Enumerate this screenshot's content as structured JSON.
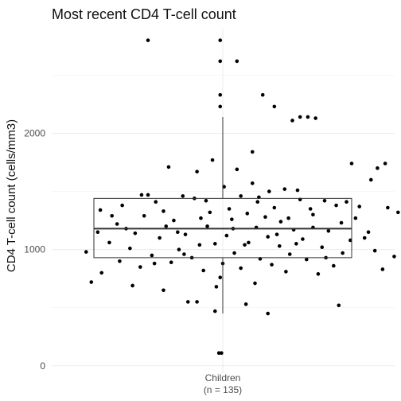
{
  "chart_data": {
    "type": "boxplot",
    "title": "Most recent CD4 T-cell count",
    "xlabel": "",
    "ylabel": "CD4 T-cell count (cells/mm3)",
    "category": "Children",
    "category_note": "(n = 135)",
    "y_ticks": [
      0,
      1000,
      2000
    ],
    "y_range": [
      -70,
      2900
    ],
    "grid": true,
    "legend": "none",
    "box": {
      "min": 450,
      "q1": 930,
      "median": 1180,
      "q3": 1440,
      "max": 2140
    },
    "points": [
      {
        "x": -0.58,
        "y": 2800
      },
      {
        "x": -0.02,
        "y": 2800
      },
      {
        "x": -0.02,
        "y": 2620
      },
      {
        "x": 0.11,
        "y": 2620
      },
      {
        "x": -0.02,
        "y": 2330
      },
      {
        "x": 0.31,
        "y": 2330
      },
      {
        "x": -0.02,
        "y": 2230
      },
      {
        "x": 0.4,
        "y": 2230
      },
      {
        "x": 0.6,
        "y": 2140
      },
      {
        "x": 0.66,
        "y": 2140
      },
      {
        "x": 0.72,
        "y": 2130
      },
      {
        "x": 0.54,
        "y": 2110
      },
      {
        "x": 0.23,
        "y": 1840
      },
      {
        "x": -0.08,
        "y": 1770
      },
      {
        "x": 1.0,
        "y": 1740
      },
      {
        "x": 1.26,
        "y": 1740
      },
      {
        "x": 1.2,
        "y": 1700
      },
      {
        "x": -0.42,
        "y": 1710
      },
      {
        "x": 0.11,
        "y": 1690
      },
      {
        "x": -0.2,
        "y": 1670
      },
      {
        "x": 1.15,
        "y": 1600
      },
      {
        "x": 0.01,
        "y": 1540
      },
      {
        "x": 0.23,
        "y": 1570
      },
      {
        "x": 0.48,
        "y": 1520
      },
      {
        "x": 0.58,
        "y": 1510
      },
      {
        "x": 0.36,
        "y": 1500
      },
      {
        "x": -0.63,
        "y": 1470
      },
      {
        "x": -0.31,
        "y": 1460
      },
      {
        "x": 0.14,
        "y": 1460
      },
      {
        "x": 0.28,
        "y": 1450
      },
      {
        "x": -0.22,
        "y": 1440
      },
      {
        "x": 0.6,
        "y": 1430
      },
      {
        "x": -0.52,
        "y": 1410
      },
      {
        "x": 0.79,
        "y": 1420
      },
      {
        "x": 0.96,
        "y": 1410
      },
      {
        "x": -0.78,
        "y": 1380
      },
      {
        "x": 0.88,
        "y": 1380
      },
      {
        "x": 1.06,
        "y": 1370
      },
      {
        "x": 1.28,
        "y": 1360
      },
      {
        "x": 0.4,
        "y": 1360
      },
      {
        "x": -0.95,
        "y": 1340
      },
      {
        "x": -0.46,
        "y": 1330
      },
      {
        "x": 0.19,
        "y": 1310
      },
      {
        "x": 0.7,
        "y": 1300
      },
      {
        "x": -0.61,
        "y": 1290
      },
      {
        "x": -0.17,
        "y": 1270
      },
      {
        "x": 0.07,
        "y": 1260
      },
      {
        "x": -0.38,
        "y": 1250
      },
      {
        "x": 0.45,
        "y": 1240
      },
      {
        "x": 0.92,
        "y": 1230
      },
      {
        "x": -0.82,
        "y": 1220
      },
      {
        "x": -0.12,
        "y": 1200
      },
      {
        "x": 0.26,
        "y": 1190
      },
      {
        "x": 0.55,
        "y": 1170
      },
      {
        "x": 0.82,
        "y": 1160
      },
      {
        "x": 1.13,
        "y": 1150
      },
      {
        "x": -0.68,
        "y": 1140
      },
      {
        "x": -0.29,
        "y": 1130
      },
      {
        "x": 0.03,
        "y": 1120
      },
      {
        "x": 0.35,
        "y": 1110
      },
      {
        "x": -0.49,
        "y": 1100
      },
      {
        "x": 0.62,
        "y": 1090
      },
      {
        "x": 0.99,
        "y": 1080
      },
      {
        "x": -0.88,
        "y": 1060
      },
      {
        "x": -0.06,
        "y": 1050
      },
      {
        "x": 0.17,
        "y": 1040
      },
      {
        "x": 0.44,
        "y": 1030
      },
      {
        "x": 0.77,
        "y": 1020
      },
      {
        "x": -0.72,
        "y": 1010
      },
      {
        "x": -0.34,
        "y": 1000
      },
      {
        "x": 1.18,
        "y": 990
      },
      {
        "x": -1.06,
        "y": 980
      },
      {
        "x": 0.09,
        "y": 970
      },
      {
        "x": 0.52,
        "y": 960
      },
      {
        "x": -0.55,
        "y": 950
      },
      {
        "x": 1.33,
        "y": 940
      },
      {
        "x": -0.24,
        "y": 930
      },
      {
        "x": 0.29,
        "y": 920
      },
      {
        "x": 0.65,
        "y": 915
      },
      {
        "x": 1.42,
        "y": 910
      },
      {
        "x": -0.8,
        "y": 900
      },
      {
        "x": -0.4,
        "y": 890
      },
      {
        "x": 0.0,
        "y": 880
      },
      {
        "x": 0.38,
        "y": 870
      },
      {
        "x": 0.86,
        "y": 860
      },
      {
        "x": -0.64,
        "y": 850
      },
      {
        "x": 0.14,
        "y": 840
      },
      {
        "x": 1.24,
        "y": 830
      },
      {
        "x": -0.15,
        "y": 820
      },
      {
        "x": 0.49,
        "y": 810
      },
      {
        "x": -0.94,
        "y": 800
      },
      {
        "x": 0.74,
        "y": 790
      },
      {
        "x": 1.46,
        "y": 770
      },
      {
        "x": -0.02,
        "y": 760
      },
      {
        "x": -1.02,
        "y": 720
      },
      {
        "x": 0.25,
        "y": 710
      },
      {
        "x": -0.7,
        "y": 690
      },
      {
        "x": -0.05,
        "y": 680
      },
      {
        "x": -0.46,
        "y": 650
      },
      {
        "x": -0.2,
        "y": 550
      },
      {
        "x": -0.27,
        "y": 550
      },
      {
        "x": 0.18,
        "y": 530
      },
      {
        "x": 0.9,
        "y": 520
      },
      {
        "x": -0.06,
        "y": 470
      },
      {
        "x": 0.35,
        "y": 450
      },
      {
        "x": -0.03,
        "y": 110
      },
      {
        "x": -0.01,
        "y": 110
      },
      {
        "x": -0.58,
        "y": 1470
      },
      {
        "x": -0.44,
        "y": 1200
      },
      {
        "x": -0.1,
        "y": 1320
      },
      {
        "x": 0.33,
        "y": 1280
      },
      {
        "x": 0.7,
        "y": 1190
      },
      {
        "x": 1.03,
        "y": 1270
      },
      {
        "x": -0.75,
        "y": 1180
      },
      {
        "x": 0.2,
        "y": 1060
      },
      {
        "x": 0.57,
        "y": 1050
      },
      {
        "x": -0.35,
        "y": 1150
      },
      {
        "x": 0.08,
        "y": 1180
      },
      {
        "x": 0.93,
        "y": 970
      },
      {
        "x": -0.86,
        "y": 1290
      },
      {
        "x": 0.42,
        "y": 1130
      },
      {
        "x": -0.18,
        "y": 1040
      },
      {
        "x": 1.1,
        "y": 1100
      },
      {
        "x": -0.53,
        "y": 880
      },
      {
        "x": 0.68,
        "y": 1350
      },
      {
        "x": 0.27,
        "y": 1410
      },
      {
        "x": -0.3,
        "y": 960
      },
      {
        "x": 0.8,
        "y": 930
      },
      {
        "x": -0.97,
        "y": 1150
      },
      {
        "x": 0.51,
        "y": 1270
      },
      {
        "x": 1.36,
        "y": 1320
      },
      {
        "x": -0.13,
        "y": 1420
      },
      {
        "x": 0.05,
        "y": 1350
      }
    ]
  }
}
